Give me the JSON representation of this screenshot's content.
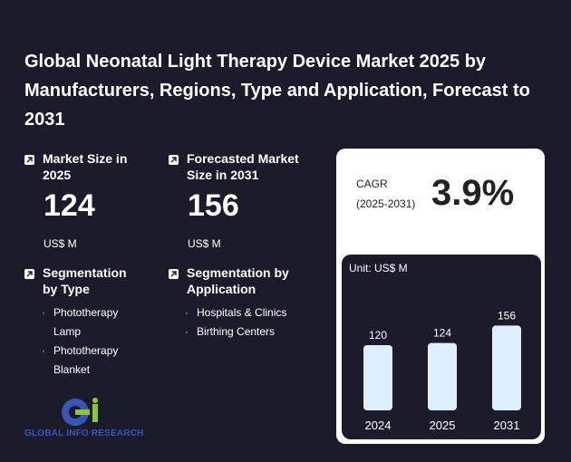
{
  "title": "Global Neonatal Light Therapy Device Market 2025 by Manufacturers, Regions, Type and Application, Forecast to 2031",
  "kpis": {
    "market_size": {
      "label": "Market Size in 2025",
      "value": "124",
      "unit": "US$ M"
    },
    "forecast": {
      "label": "Forecasted Market Size in 2031",
      "value": "156",
      "unit": "US$ M"
    }
  },
  "segmentation": {
    "type": {
      "label": "Segmentation by Type",
      "items": [
        "Phototherapy Lamp",
        "Phototherapy Blanket"
      ]
    },
    "application": {
      "label": "Segmentation by Application",
      "items": [
        "Hospitals & Clinics",
        "Birthing Centers"
      ]
    }
  },
  "cagr": {
    "label": "CAGR",
    "period": "(2025-2031)",
    "value": "3.9%"
  },
  "logo": {
    "text": "GLOBAL INFO RESEARCH"
  },
  "chart_data": {
    "type": "bar",
    "unit_label": "Unit: US$ M",
    "categories": [
      "2024",
      "2025",
      "2031"
    ],
    "values": [
      120,
      124,
      156
    ],
    "bar_color": "#ddeeff"
  },
  "icons": {
    "kpi": "arrow-up-right-icon"
  }
}
